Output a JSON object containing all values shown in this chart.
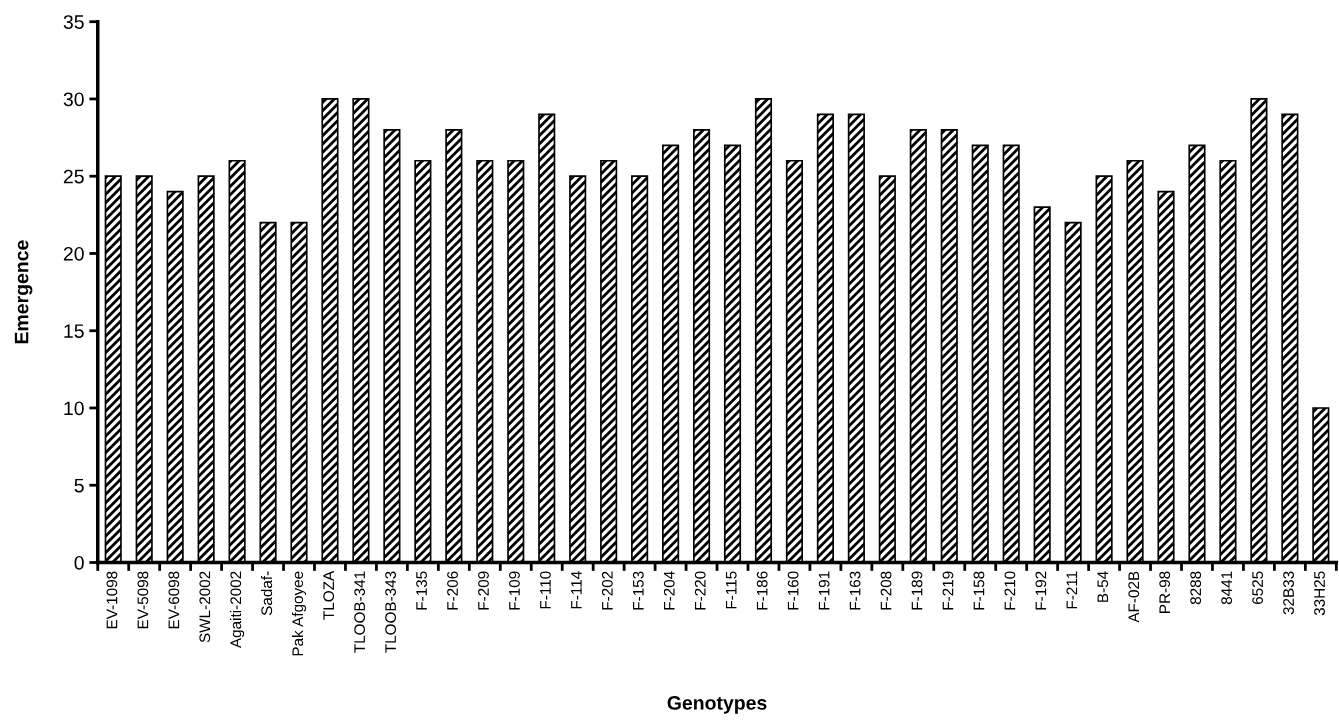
{
  "chart_data": {
    "type": "bar",
    "xlabel": "Genotypes",
    "ylabel": "Emergence",
    "categories": [
      "EV-1098",
      "EV-5098",
      "EV-6098",
      "SWL-2002",
      "Agaiti-2002",
      "Sadaf-",
      "Pak Afgoyee",
      "TLOZA",
      "TLOOB-341",
      "TLOOB-343",
      "F-135",
      "F-206",
      "F-209",
      "F-109",
      "F-110",
      "F-114",
      "F-202",
      "F-153",
      "F-204",
      "F-220",
      "F-115",
      "F-186",
      "F-160",
      "F-191",
      "F-163",
      "F-208",
      "F-189",
      "F-219",
      "F-158",
      "F-210",
      "F-192",
      "F-211",
      "B-54",
      "AF-02B",
      "PR-98",
      "8288",
      "8441",
      "6525",
      "32B33",
      "33H25"
    ],
    "values": [
      25,
      25,
      24,
      25,
      26,
      22,
      22,
      30,
      30,
      28,
      26,
      28,
      26,
      26,
      29,
      25,
      26,
      25,
      27,
      28,
      27,
      30,
      26,
      29,
      29,
      25,
      28,
      28,
      27,
      27,
      23,
      22,
      25,
      26,
      24,
      27,
      26,
      30,
      29,
      10
    ],
    "color": "#000000",
    "ylim": [
      0,
      35
    ],
    "yticks": [
      0,
      5,
      10,
      15,
      20,
      25,
      30,
      35
    ],
    "grid": false,
    "legend": false
  }
}
